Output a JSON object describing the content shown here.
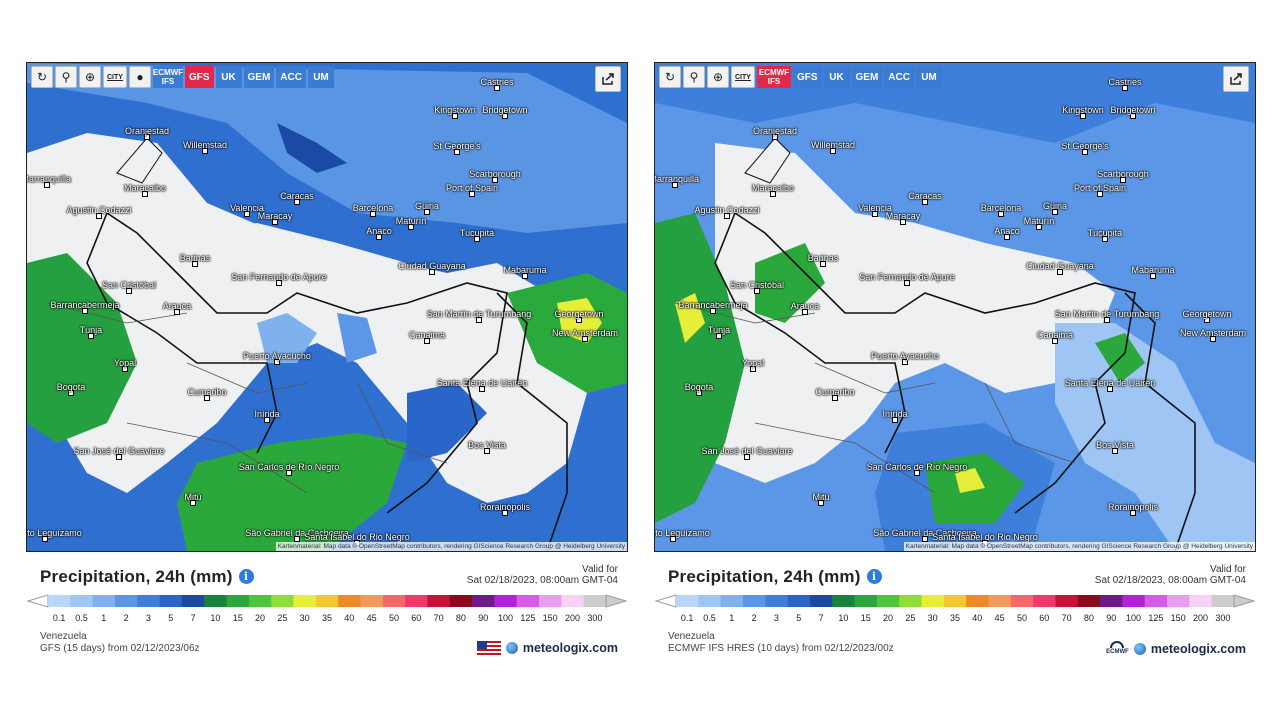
{
  "panels": [
    {
      "toolbar": {
        "refresh_icon": "↻",
        "locate_icon": "⚲",
        "zoom_icon": "⊕",
        "city_label": "CITY",
        "dot_icon": "●",
        "models": [
          {
            "label": "ECMWF IFS",
            "active": false
          },
          {
            "label": "GFS",
            "active": true
          },
          {
            "label": "UK",
            "active": false
          },
          {
            "label": "GEM",
            "active": false
          },
          {
            "label": "ACC",
            "active": false
          },
          {
            "label": "UM",
            "active": false
          }
        ]
      },
      "cities": [
        "Castries",
        "Kingstown",
        "Bridgetown",
        "Oranjestad",
        "Willemstad",
        "St George's",
        "Scarborough",
        "Port of Spain",
        "Barranquilla",
        "Maracaibo",
        "Caracas",
        "Agustin Codazzi",
        "Valencia",
        "Maracay",
        "Barcelona",
        "Güiria",
        "Maturín",
        "Anaco",
        "Tucupita",
        "Barinas",
        "Ciudad Guayana",
        "Mabaruma",
        "San Cristóbal",
        "San Fernando de Apure",
        "Barrancabermeja",
        "Arauca",
        "Georgetown",
        "New Amsterdam",
        "San Martín de Turumbang",
        "Canaima",
        "Tunja",
        "Yopal",
        "Puerto Ayacucho",
        "Bogota",
        "Santa Elena de Uairén",
        "Cumaribo",
        "Inírida",
        "Bos Vista",
        "San José del Guaviare",
        "San Carlos de Río Negro",
        "Rorainópolis",
        "Mitú",
        "Puerto Leguízamo",
        "São Gabriel da Cachoeira",
        "Santa Isabel do Rio Negro"
      ],
      "attribution": "Kartenmaterial: Map data © OpenStreetMap contributors, rendering GIScience Research Group @ Heidelberg University",
      "title": "Precipitation, 24h (mm)",
      "valid_for": "Valid for",
      "valid_time": "Sat 02/18/2023, 08:00am GMT-04",
      "region": "Venezuela",
      "model_run": "GFS (15 days) from 02/12/2023/06z",
      "flag_icon": "us-flag-icon",
      "brand": "meteologix.com"
    },
    {
      "toolbar": {
        "refresh_icon": "↻",
        "locate_icon": "⚲",
        "zoom_icon": "⊕",
        "city_label": "CITY",
        "models": [
          {
            "label": "ECMWF IFS",
            "active": true
          },
          {
            "label": "GFS",
            "active": false
          },
          {
            "label": "UK",
            "active": false
          },
          {
            "label": "GEM",
            "active": false
          },
          {
            "label": "ACC",
            "active": false
          },
          {
            "label": "UM",
            "active": false
          }
        ]
      },
      "attribution": "Kartenmaterial: Map data © OpenStreetMap contributors, rendering GIScience Research Group @ Heidelberg University",
      "title": "Precipitation, 24h (mm)",
      "valid_for": "Valid for",
      "valid_time": "Sat 02/18/2023, 08:00am GMT-04",
      "region": "Venezuela",
      "model_run": "ECMWF IFS HRES (10 days) from 02/12/2023/00z",
      "ecmwf_logo_text": "ECMWF",
      "brand": "meteologix.com"
    }
  ],
  "scale": {
    "ticks": [
      "0.1",
      "0.5",
      "1",
      "2",
      "3",
      "5",
      "7",
      "10",
      "15",
      "20",
      "25",
      "30",
      "35",
      "40",
      "45",
      "50",
      "60",
      "70",
      "80",
      "90",
      "100",
      "125",
      "150",
      "200",
      "300"
    ],
    "colors": [
      "#b9d6f7",
      "#9ec5f4",
      "#7fb1ef",
      "#5b97e6",
      "#3e7fdc",
      "#2a66c9",
      "#1a4aa3",
      "#18843a",
      "#2aa83c",
      "#4cc63a",
      "#8fdc3a",
      "#e6ee3a",
      "#f4c634",
      "#ee8a2a",
      "#f29a5a",
      "#f06a6a",
      "#ee3a6a",
      "#c8123a",
      "#8a0a1e",
      "#6e1a8a",
      "#b422d8",
      "#d85ae8",
      "#e99cf0",
      "#f6d2f6",
      "#cccccc"
    ]
  }
}
